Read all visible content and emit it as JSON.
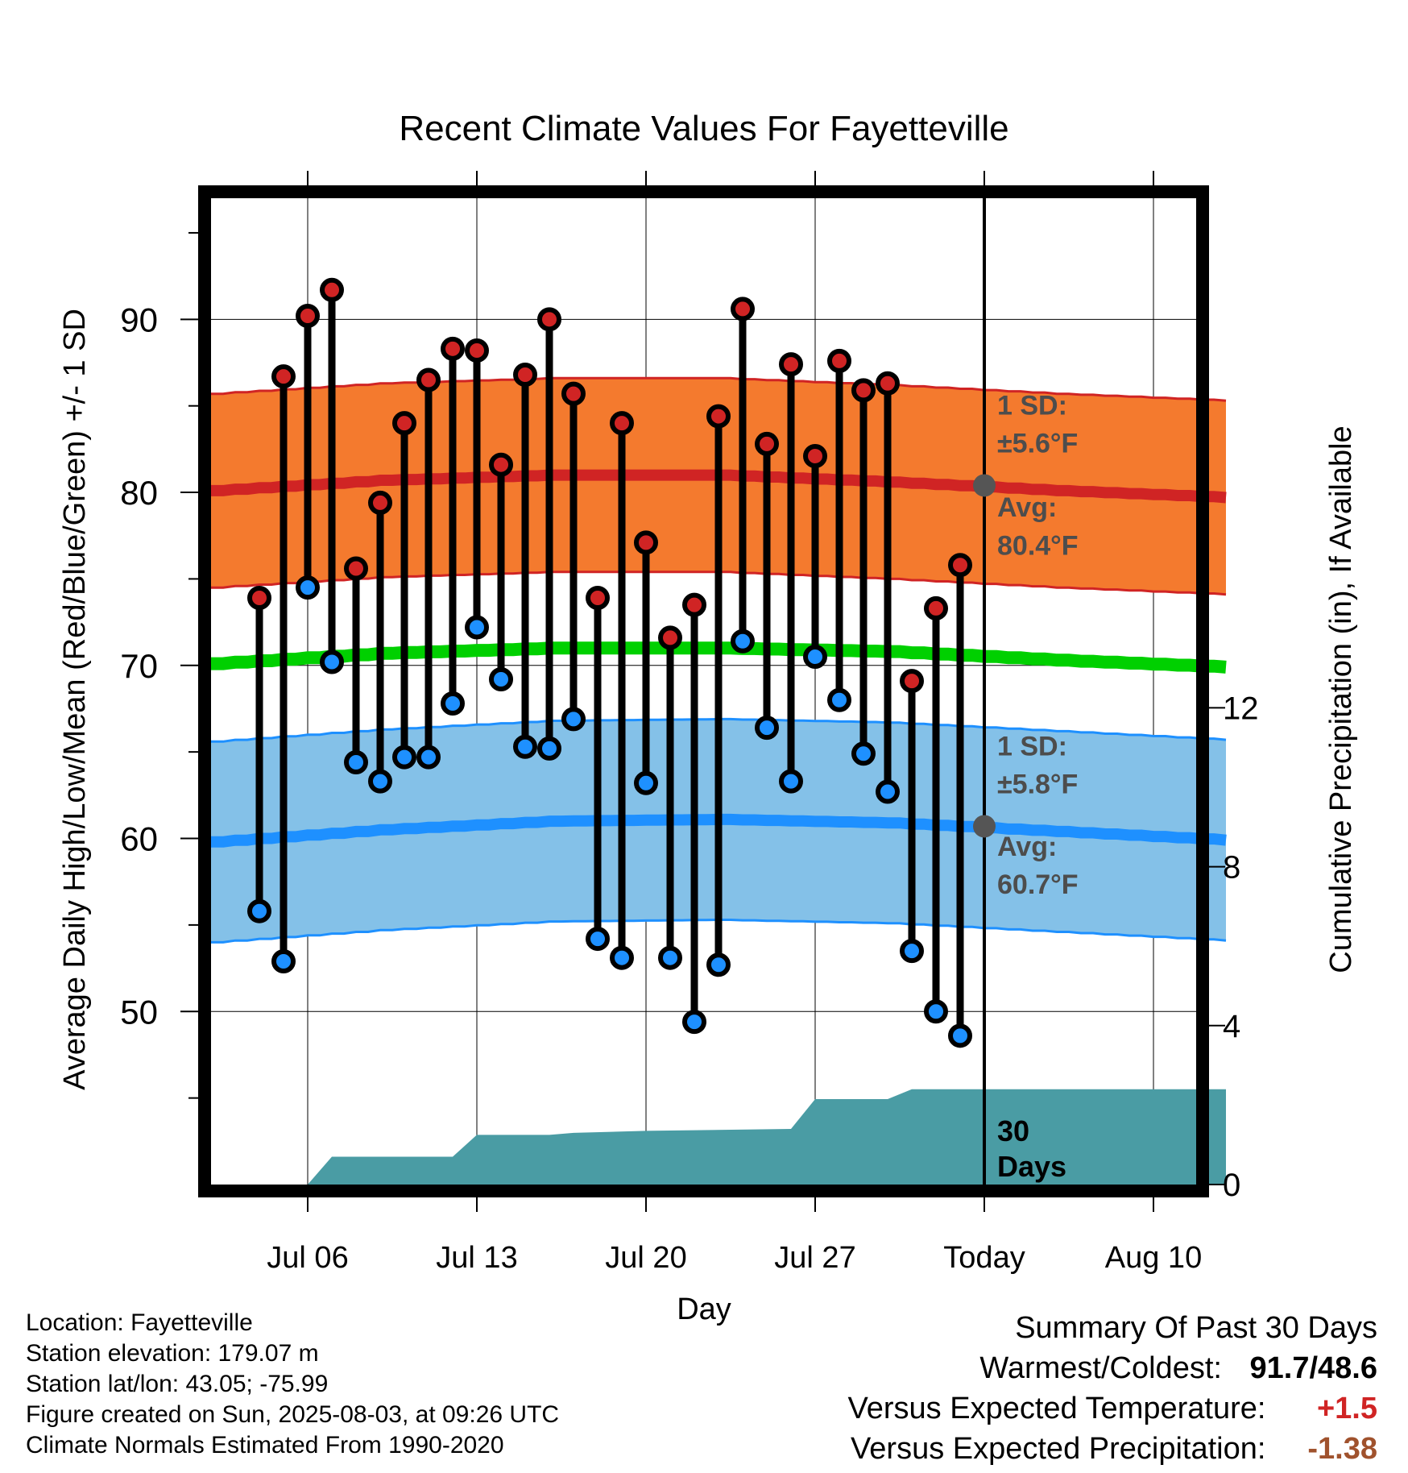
{
  "chart_data": {
    "type": "line",
    "title": "Recent Climate Values For Fayetteville",
    "xlabel": "Day",
    "ylabel": "Average Daily High/Low/Mean (Red/Blue/Green) +/- 1 SD",
    "y2label": "Cumulative Precipitation (in), If Available",
    "xlim": [
      "2025-07-02",
      "2025-08-13"
    ],
    "ylim": [
      40,
      97
    ],
    "y2lim": [
      0,
      24
    ],
    "x_ticks": [
      {
        "date": "2025-07-06",
        "label": "Jul 06"
      },
      {
        "date": "2025-07-13",
        "label": "Jul 13"
      },
      {
        "date": "2025-07-20",
        "label": "Jul 20"
      },
      {
        "date": "2025-07-27",
        "label": "Jul 27"
      },
      {
        "date": "2025-08-03",
        "label": "Today"
      },
      {
        "date": "2025-08-10",
        "label": "Aug 10"
      }
    ],
    "y_ticks": [
      50,
      60,
      70,
      80,
      90
    ],
    "y2_ticks": [
      0,
      4,
      8,
      12
    ],
    "grid": true,
    "today": "2025-08-03",
    "days": [
      "2025-07-04",
      "2025-07-05",
      "2025-07-06",
      "2025-07-07",
      "2025-07-08",
      "2025-07-09",
      "2025-07-10",
      "2025-07-11",
      "2025-07-12",
      "2025-07-13",
      "2025-07-14",
      "2025-07-15",
      "2025-07-16",
      "2025-07-17",
      "2025-07-18",
      "2025-07-19",
      "2025-07-20",
      "2025-07-21",
      "2025-07-22",
      "2025-07-23",
      "2025-07-24",
      "2025-07-25",
      "2025-07-26",
      "2025-07-27",
      "2025-07-28",
      "2025-07-29",
      "2025-07-30",
      "2025-07-31",
      "2025-08-01",
      "2025-08-02"
    ],
    "highs": [
      73.9,
      86.7,
      90.2,
      91.7,
      75.6,
      79.4,
      84.0,
      86.5,
      88.3,
      88.2,
      81.6,
      86.8,
      90.0,
      85.7,
      73.9,
      84.0,
      77.1,
      71.6,
      73.5,
      84.4,
      90.6,
      82.8,
      87.4,
      82.1,
      87.6,
      85.9,
      86.3,
      69.1,
      73.3,
      75.8
    ],
    "lows": [
      55.8,
      52.9,
      74.5,
      70.2,
      64.4,
      63.3,
      64.7,
      64.7,
      67.8,
      72.2,
      69.2,
      65.3,
      65.2,
      66.9,
      54.2,
      53.1,
      63.2,
      53.1,
      49.4,
      52.7,
      71.4,
      66.4,
      63.3,
      70.5,
      68.0,
      64.9,
      62.7,
      53.5,
      50.0,
      48.6
    ],
    "normal_high": {
      "x": [
        "2025-07-02",
        "2025-07-09",
        "2025-07-16",
        "2025-07-23",
        "2025-07-30",
        "2025-08-06",
        "2025-08-13"
      ],
      "values": [
        80.1,
        80.7,
        81.0,
        81.0,
        80.6,
        80.1,
        79.7
      ]
    },
    "normal_low": {
      "x": [
        "2025-07-02",
        "2025-07-09",
        "2025-07-16",
        "2025-07-23",
        "2025-07-30",
        "2025-08-06",
        "2025-08-13"
      ],
      "values": [
        59.8,
        60.5,
        61.0,
        61.1,
        60.9,
        60.4,
        59.9
      ]
    },
    "normal_mean": {
      "x": [
        "2025-07-02",
        "2025-07-09",
        "2025-07-16",
        "2025-07-23",
        "2025-07-30",
        "2025-08-06",
        "2025-08-13"
      ],
      "values": [
        70.1,
        70.7,
        71.0,
        71.0,
        70.8,
        70.3,
        69.9
      ]
    },
    "sd_high": 5.6,
    "sd_low": 5.8,
    "precip_cumulative": {
      "x": [
        "2025-07-06",
        "2025-07-07",
        "2025-07-12",
        "2025-07-13",
        "2025-07-16",
        "2025-07-17",
        "2025-07-20",
        "2025-07-26",
        "2025-07-27",
        "2025-07-30",
        "2025-07-31",
        "2025-08-03",
        "2025-08-13"
      ],
      "values": [
        0.0,
        0.7,
        0.7,
        1.25,
        1.25,
        1.3,
        1.35,
        1.4,
        2.15,
        2.15,
        2.4,
        2.4,
        2.4
      ]
    },
    "annotations": {
      "high_sd": "1 SD:",
      "high_sd_val": "±5.6°F",
      "high_avg": "Avg:",
      "high_avg_val": "80.4°F",
      "low_sd": "1 SD:",
      "low_sd_val": "±5.8°F",
      "low_avg": "Avg:",
      "low_avg_val": "60.7°F",
      "period_1": "30",
      "period_2": "Days"
    },
    "today_avg_high": 80.4,
    "today_avg_low": 60.7
  },
  "info": {
    "location": "Location: Fayetteville",
    "elevation": "Station elevation: 179.07 m",
    "latlon": "Station lat/lon: 43.05; -75.99",
    "created": "Figure created on Sun, 2025-08-03, at 09:26 UTC",
    "normals": "Climate Normals Estimated From 1990-2020"
  },
  "summary": {
    "title": "Summary Of Past 30 Days",
    "warm_label": "Warmest/Coldest:",
    "warm_value": "91.7/48.6",
    "temp_label": "Versus Expected Temperature:",
    "temp_value": "+1.5",
    "precip_label": "Versus Expected Precipitation:",
    "precip_value": "-1.38"
  },
  "colors": {
    "high_band": "#f47a2e",
    "high_line": "#d02424",
    "low_band": "#84c1e8",
    "low_line": "#1e90ff",
    "mean_line": "#00d000",
    "precip": "#4a9ca4",
    "high_dot": "#d02424",
    "low_dot": "#1e90ff",
    "annot": "#4d4d4d",
    "temp_pos": "#d02424",
    "precip_neg": "#a0522d"
  }
}
